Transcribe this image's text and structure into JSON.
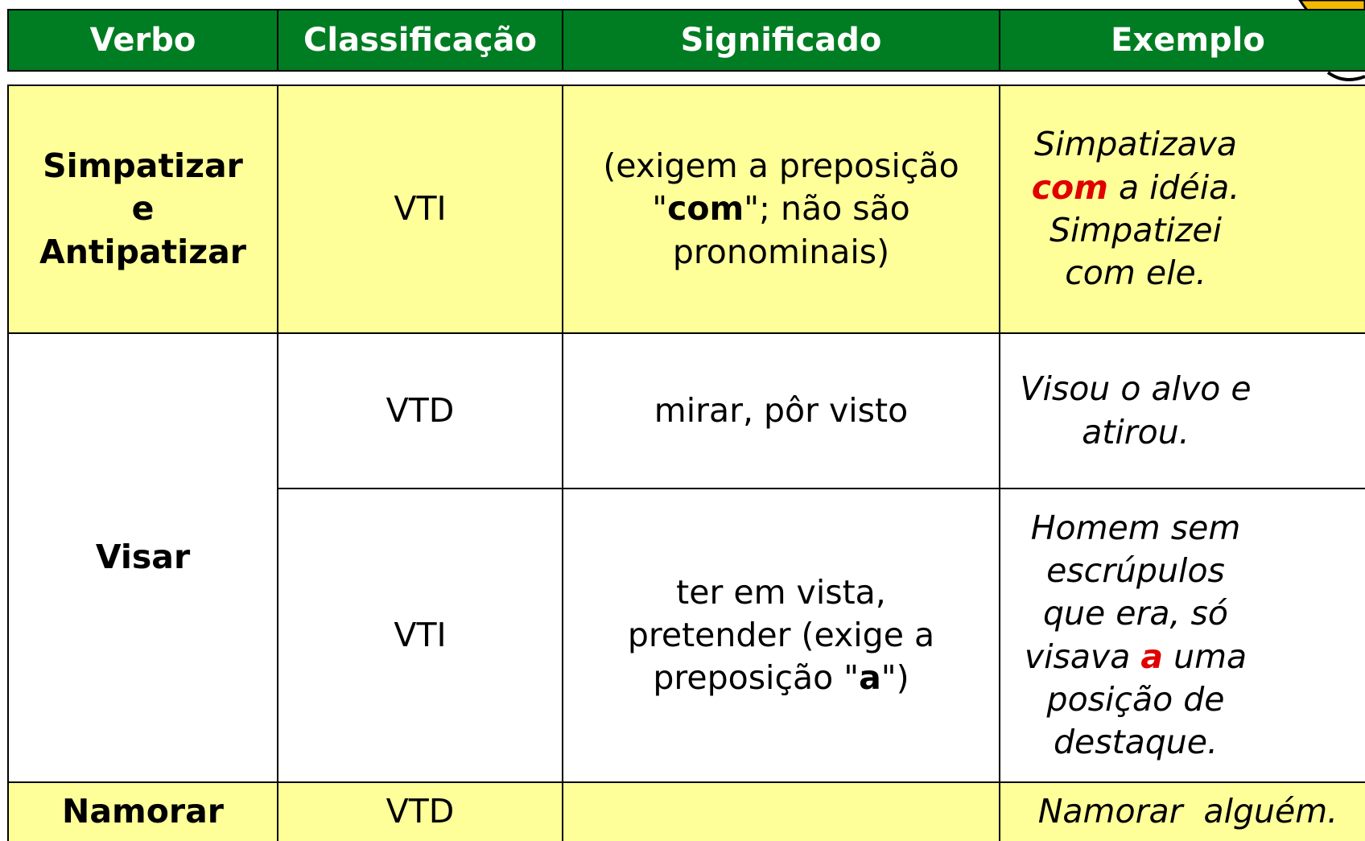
{
  "table": {
    "header": [
      "Verbo",
      "Classificação",
      "Significado",
      "Exemplo"
    ],
    "rows": [
      {
        "verb": [
          "Simpatizar",
          "e",
          "Antipatizar"
        ],
        "senses": [
          {
            "classificacao": "VTI",
            "significado": [
              "(exigem a preposição \"",
              "com",
              "\"; não são pronominais)"
            ],
            "exemplo": [
              "Simpatizava ",
              "com",
              " a idéia. Simpatizei com ele."
            ]
          }
        ]
      },
      {
        "verb": [
          "Visar"
        ],
        "senses": [
          {
            "classificacao": "VTD",
            "significado": [
              "mirar, pôr visto"
            ],
            "exemplo": [
              "Visou o alvo e atirou."
            ]
          },
          {
            "classificacao": "VTI",
            "significado": [
              "ter em vista, pretender (exige a preposição \"",
              "a",
              "\")"
            ],
            "exemplo": [
              "Homem sem escrúpulos que era, só visava ",
              "a",
              " uma posição de destaque."
            ]
          }
        ]
      },
      {
        "verb": [
          "Namorar"
        ],
        "senses": [
          {
            "classificacao": "VTD",
            "exemplo": [
              "Namorar  alguém."
            ]
          }
        ]
      }
    ]
  }
}
